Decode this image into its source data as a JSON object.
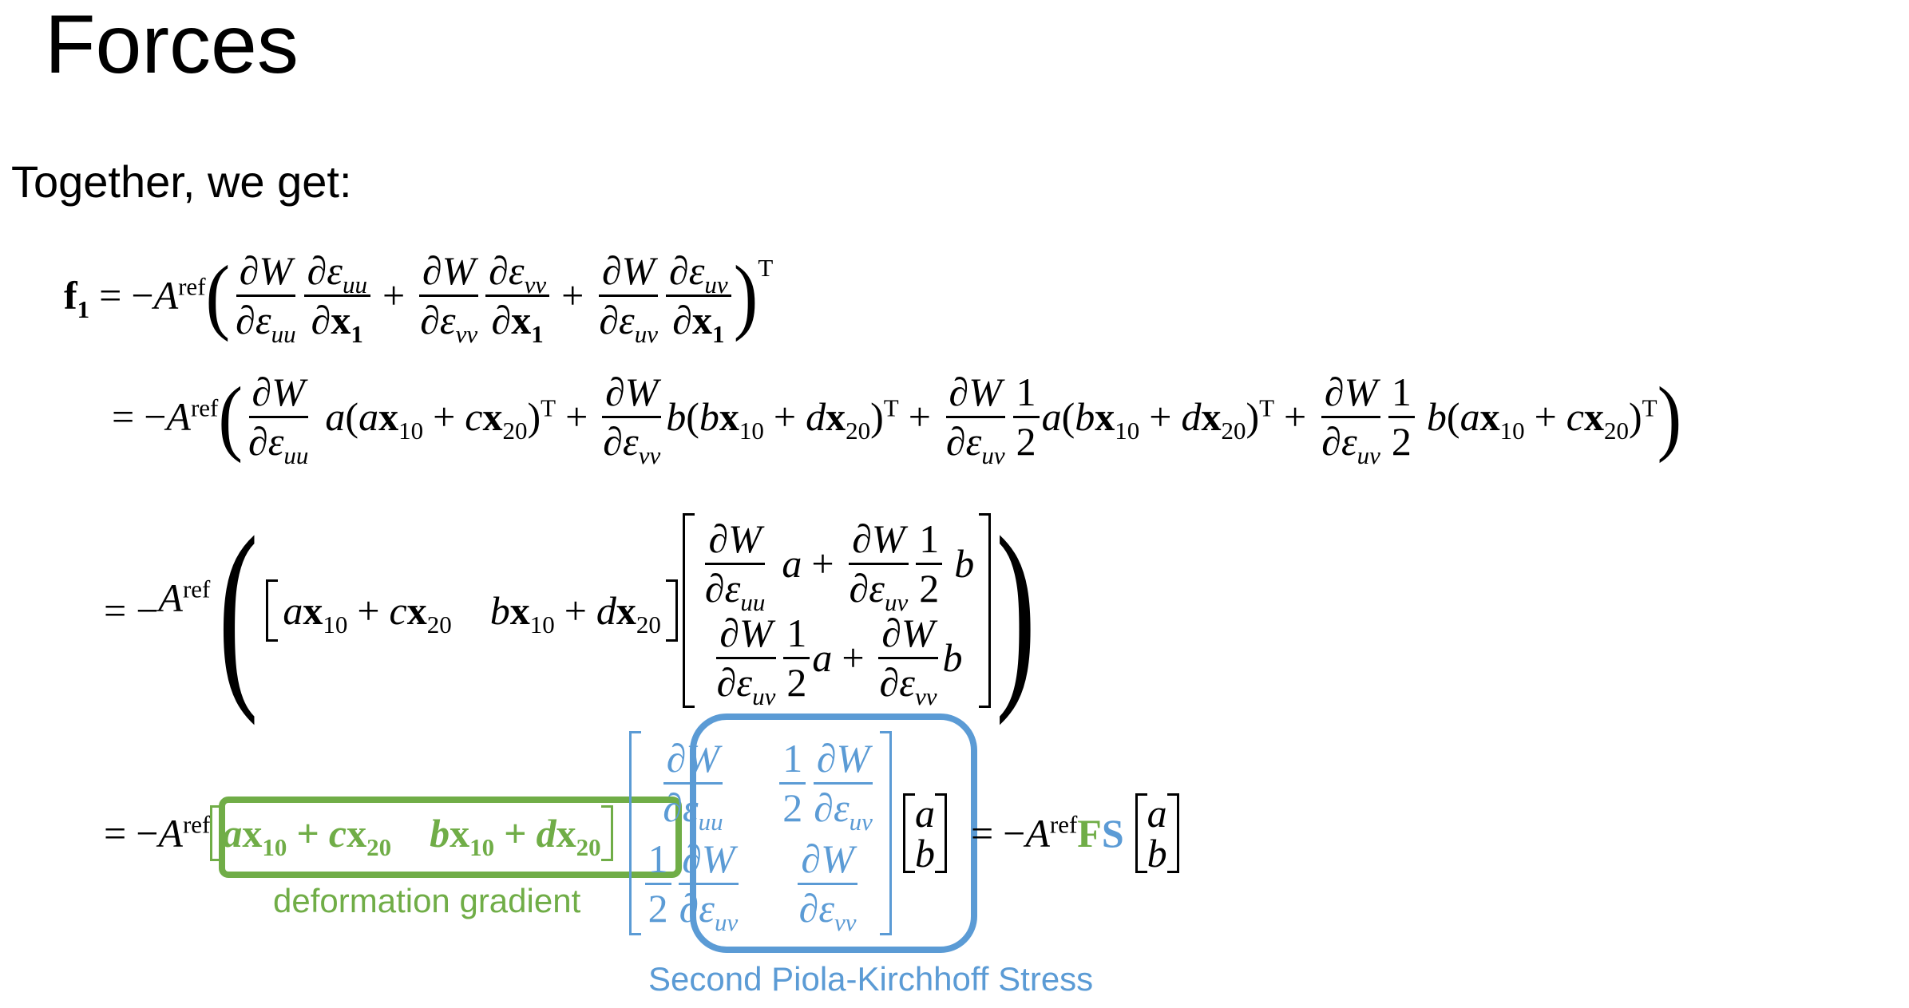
{
  "title": "Forces",
  "intro": "Together, we get:",
  "math": {
    "f1": "f",
    "sub1": "1",
    "eq": "=",
    "minus": "−",
    "plus": "+",
    "A": "A",
    "ref": "ref",
    "T": "T",
    "dW": "∂W",
    "de_uu": "∂ε",
    "uu": "uu",
    "vv": "vv",
    "uv": "uv",
    "dx1": "∂x",
    "one": "1",
    "two": "2",
    "a": "a",
    "b": "b",
    "c": "c",
    "d": "d",
    "x": "x",
    "s10": "10",
    "s20": "20",
    "lp": "(",
    "rp": ")",
    "F": "F",
    "S": "S"
  },
  "labels": {
    "deformation_gradient": "deformation gradient",
    "second_pk": "Second Piola-Kirchhoff Stress"
  },
  "colors": {
    "green": "#70ad47",
    "blue": "#5b9bd5"
  }
}
